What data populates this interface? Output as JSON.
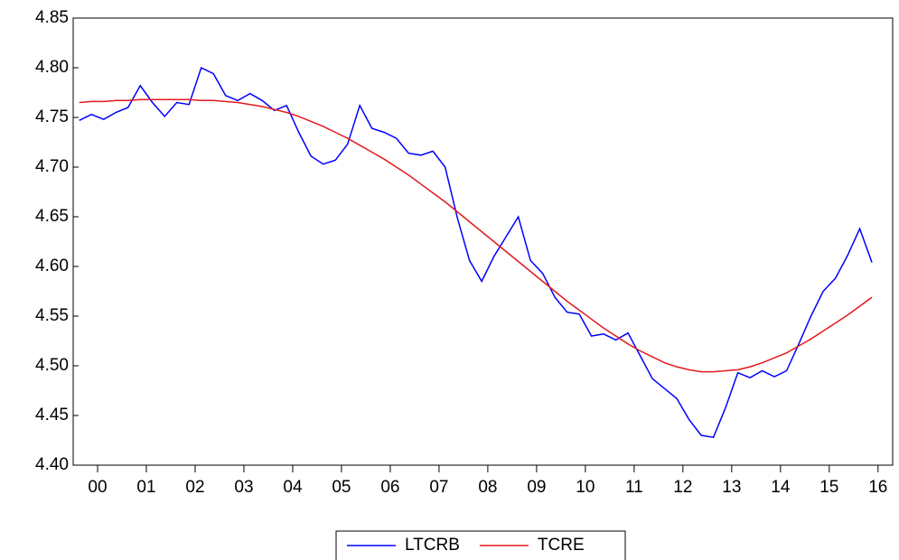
{
  "chart_data": {
    "type": "line",
    "x": [
      2000.125,
      2000.375,
      2000.625,
      2000.875,
      2001.125,
      2001.375,
      2001.625,
      2001.875,
      2002.125,
      2002.375,
      2002.625,
      2002.875,
      2003.125,
      2003.375,
      2003.625,
      2003.875,
      2004.125,
      2004.375,
      2004.625,
      2004.875,
      2005.125,
      2005.375,
      2005.625,
      2005.875,
      2006.125,
      2006.375,
      2006.625,
      2006.875,
      2007.125,
      2007.375,
      2007.625,
      2007.875,
      2008.125,
      2008.375,
      2008.625,
      2008.875,
      2009.125,
      2009.375,
      2009.625,
      2009.875,
      2010.125,
      2010.375,
      2010.625,
      2010.875,
      2011.125,
      2011.375,
      2011.625,
      2011.875,
      2012.125,
      2012.375,
      2012.625,
      2012.875,
      2013.125,
      2013.375,
      2013.625,
      2013.875,
      2014.125,
      2014.375,
      2014.625,
      2014.875,
      2015.125,
      2015.375,
      2015.625,
      2015.875,
      2016.125,
      2016.375
    ],
    "series": [
      {
        "name": "LTCRB",
        "color": "#0000ff",
        "values": [
          4.747,
          4.753,
          4.748,
          4.755,
          4.76,
          4.782,
          4.765,
          4.751,
          4.765,
          4.763,
          4.8,
          4.794,
          4.772,
          4.767,
          4.774,
          4.767,
          4.757,
          4.762,
          4.735,
          4.711,
          4.703,
          4.707,
          4.723,
          4.762,
          4.739,
          4.735,
          4.729,
          4.714,
          4.712,
          4.716,
          4.7,
          4.649,
          4.606,
          4.585,
          4.61,
          4.63,
          4.65,
          4.606,
          4.593,
          4.569,
          4.554,
          4.552,
          4.53,
          4.532,
          4.526,
          4.533,
          4.51,
          4.487,
          4.477,
          4.467,
          4.446,
          4.43,
          4.428,
          4.458,
          4.493,
          4.488,
          4.495,
          4.489,
          4.495,
          4.522,
          4.55,
          4.575,
          4.588,
          4.611,
          4.638,
          4.604
        ]
      },
      {
        "name": "TCRE",
        "color": "#e31a1c",
        "values": [
          4.765,
          4.766,
          4.766,
          4.767,
          4.767,
          4.768,
          4.768,
          4.768,
          4.768,
          4.768,
          4.767,
          4.767,
          4.766,
          4.765,
          4.763,
          4.761,
          4.758,
          4.755,
          4.751,
          4.746,
          4.741,
          4.735,
          4.729,
          4.722,
          4.715,
          4.708,
          4.7,
          4.692,
          4.683,
          4.674,
          4.665,
          4.655,
          4.645,
          4.635,
          4.625,
          4.615,
          4.605,
          4.595,
          4.585,
          4.575,
          4.565,
          4.556,
          4.547,
          4.538,
          4.53,
          4.522,
          4.515,
          4.509,
          4.503,
          4.499,
          4.496,
          4.494,
          4.494,
          4.495,
          4.496,
          4.499,
          4.503,
          4.508,
          4.513,
          4.52,
          4.527,
          4.535,
          4.543,
          4.551,
          4.56,
          4.569
        ]
      }
    ],
    "xlim": [
      2000,
      2016.8
    ],
    "xticks": [
      {
        "value": 2000.5,
        "label": "00"
      },
      {
        "value": 2001.5,
        "label": "01"
      },
      {
        "value": 2002.5,
        "label": "02"
      },
      {
        "value": 2003.5,
        "label": "03"
      },
      {
        "value": 2004.5,
        "label": "04"
      },
      {
        "value": 2005.5,
        "label": "05"
      },
      {
        "value": 2006.5,
        "label": "06"
      },
      {
        "value": 2007.5,
        "label": "07"
      },
      {
        "value": 2008.5,
        "label": "08"
      },
      {
        "value": 2009.5,
        "label": "09"
      },
      {
        "value": 2010.5,
        "label": "10"
      },
      {
        "value": 2011.5,
        "label": "11"
      },
      {
        "value": 2012.5,
        "label": "12"
      },
      {
        "value": 2013.5,
        "label": "13"
      },
      {
        "value": 2014.5,
        "label": "14"
      },
      {
        "value": 2015.5,
        "label": "15"
      },
      {
        "value": 2016.5,
        "label": "16"
      }
    ],
    "ylim": [
      4.4,
      4.85
    ],
    "yticks": [
      {
        "value": 4.4,
        "label": "4.40"
      },
      {
        "value": 4.45,
        "label": "4.45"
      },
      {
        "value": 4.5,
        "label": "4.50"
      },
      {
        "value": 4.55,
        "label": "4.55"
      },
      {
        "value": 4.6,
        "label": "4.60"
      },
      {
        "value": 4.65,
        "label": "4.65"
      },
      {
        "value": 4.7,
        "label": "4.70"
      },
      {
        "value": 4.75,
        "label": "4.75"
      },
      {
        "value": 4.8,
        "label": "4.80"
      },
      {
        "value": 4.85,
        "label": "4.85"
      }
    ],
    "grid": false,
    "legend": "bottom"
  }
}
